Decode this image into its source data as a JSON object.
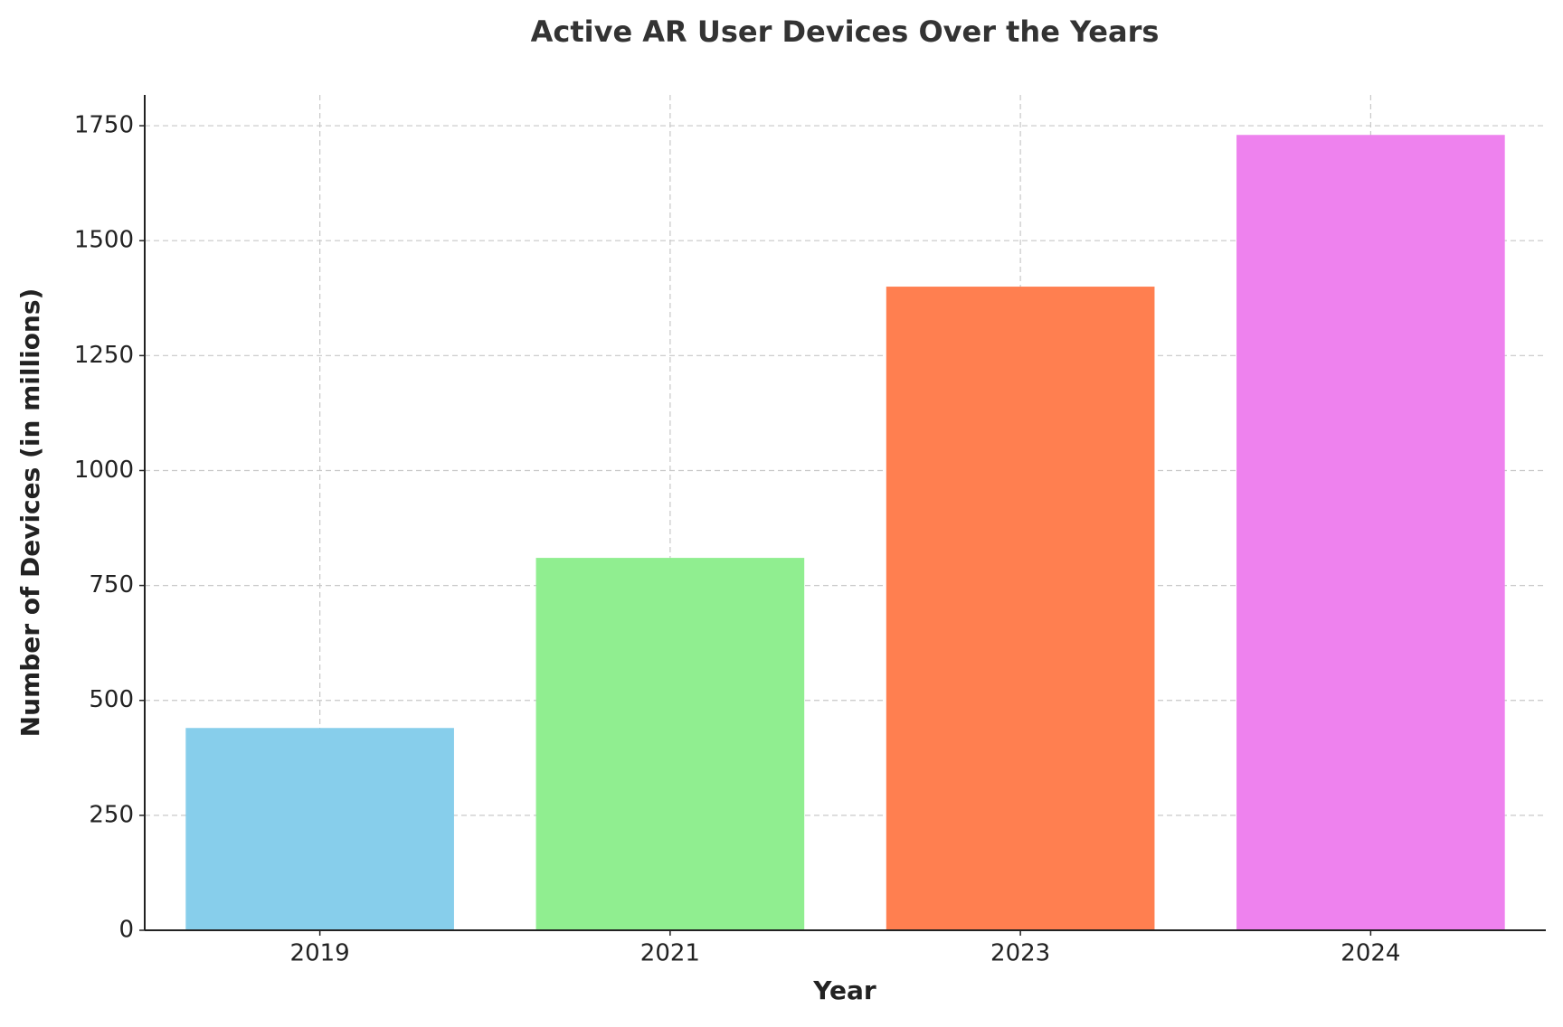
{
  "chart_data": {
    "type": "bar",
    "title": "Active AR User Devices Over the Years",
    "x_label": "Year",
    "y_label": "Number of Devices (in millions)",
    "categories": [
      "2019",
      "2021",
      "2023",
      "2024"
    ],
    "values": [
      440,
      810,
      1400,
      1730
    ],
    "colors": [
      "#87ceeb",
      "#90ee90",
      "#ff7f50",
      "#ee82ee"
    ],
    "ylim": [
      0,
      1817
    ],
    "yticks": [
      0,
      250,
      500,
      750,
      1000,
      1250,
      1500,
      1750
    ],
    "grid": true
  }
}
